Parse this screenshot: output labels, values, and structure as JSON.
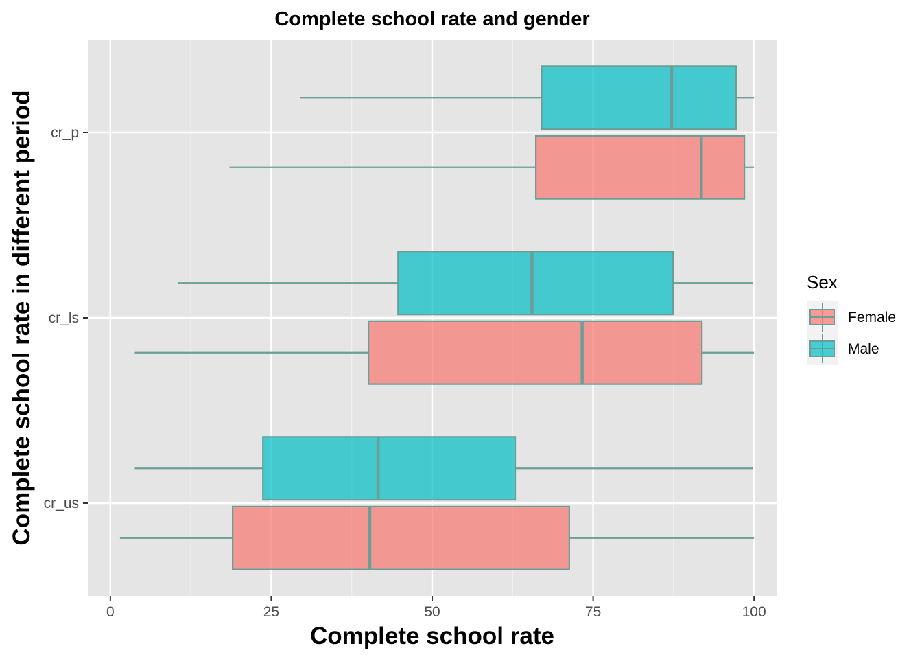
{
  "chart_data": {
    "type": "boxplot",
    "orientation": "horizontal",
    "title": "Complete school rate and gender",
    "xlabel": "Complete school rate",
    "ylabel": "Complete school rate in different period",
    "xlim": [
      -3.5,
      103.5
    ],
    "x_ticks": [
      0,
      25,
      50,
      75,
      100
    ],
    "x_tick_labels": [
      "0",
      "25",
      "50",
      "75",
      "100"
    ],
    "categories": [
      "cr_us",
      "cr_ls",
      "cr_p"
    ],
    "grid": true,
    "background": "#e5e5e5",
    "legend": {
      "title": "Sex",
      "position": "right"
    },
    "series": [
      {
        "name": "Female",
        "color": "#f8766d",
        "boxes": [
          {
            "category": "cr_us",
            "whisker_low": 1.5,
            "q1": 19.0,
            "median": 40.3,
            "q3": 71.3,
            "whisker_high": 100
          },
          {
            "category": "cr_ls",
            "whisker_low": 3.8,
            "q1": 40.1,
            "median": 73.3,
            "q3": 91.9,
            "whisker_high": 100
          },
          {
            "category": "cr_p",
            "whisker_low": 18.5,
            "q1": 66.1,
            "median": 91.8,
            "q3": 98.5,
            "whisker_high": 100
          }
        ]
      },
      {
        "name": "Male",
        "color": "#00bfc4",
        "boxes": [
          {
            "category": "cr_us",
            "whisker_low": 3.8,
            "q1": 23.7,
            "median": 41.6,
            "q3": 62.9,
            "whisker_high": 99.8
          },
          {
            "category": "cr_ls",
            "whisker_low": 10.5,
            "q1": 44.7,
            "median": 65.5,
            "q3": 87.4,
            "whisker_high": 99.8
          },
          {
            "category": "cr_p",
            "whisker_low": 29.5,
            "q1": 67.0,
            "median": 87.2,
            "q3": 97.2,
            "whisker_high": 100
          }
        ]
      }
    ]
  }
}
